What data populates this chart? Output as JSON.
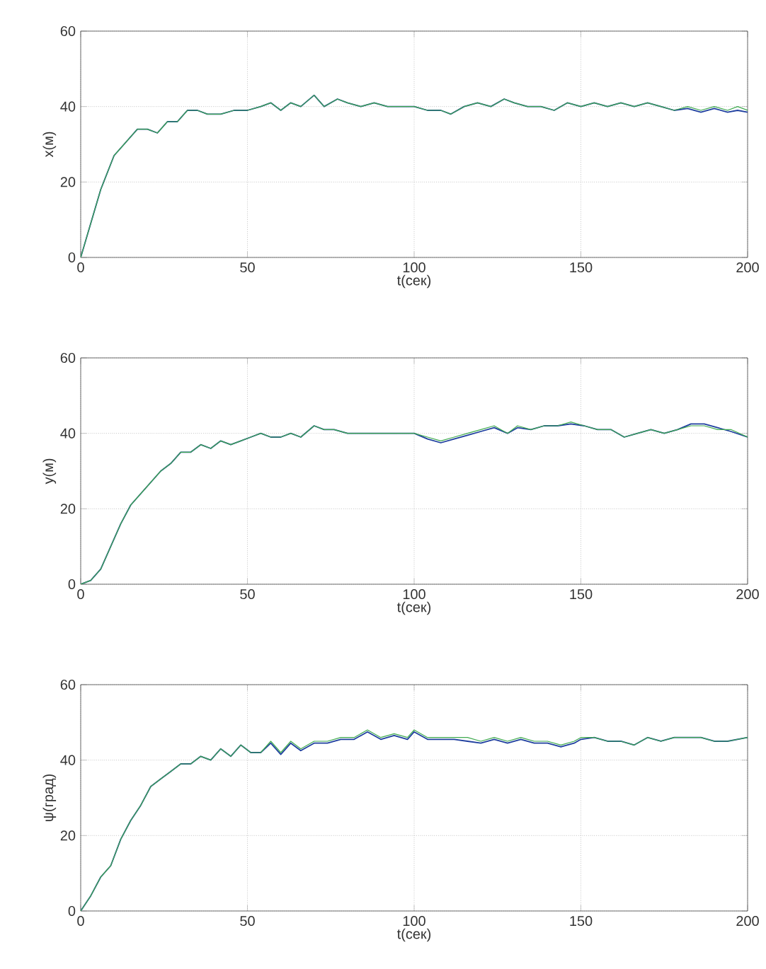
{
  "chart_data": [
    {
      "type": "line",
      "xlabel": "t(сек)",
      "ylabel": "x(м)",
      "xlim": [
        0,
        200
      ],
      "ylim": [
        0,
        60
      ],
      "xticks": [
        0,
        50,
        100,
        150,
        200
      ],
      "yticks": [
        0,
        20,
        40,
        60
      ],
      "grid": true,
      "line_style": "solid",
      "x": [
        0,
        3,
        6,
        10,
        13,
        17,
        20,
        23,
        26,
        29,
        32,
        35,
        38,
        42,
        46,
        50,
        54,
        57,
        60,
        63,
        66,
        70,
        73,
        77,
        80,
        84,
        88,
        92,
        96,
        100,
        104,
        108,
        111,
        115,
        119,
        123,
        127,
        130,
        134,
        138,
        142,
        146,
        150,
        154,
        158,
        162,
        166,
        170,
        174,
        178,
        182,
        186,
        190,
        194,
        197,
        200
      ],
      "series": [
        {
          "color": "#1f3f9f",
          "values": [
            0,
            9,
            18,
            27,
            30,
            34,
            34,
            33,
            36,
            36,
            39,
            39,
            38,
            38,
            39,
            39,
            40,
            41,
            39,
            41,
            40,
            43,
            40,
            42,
            41,
            40,
            41,
            40,
            40,
            40,
            39,
            39,
            38,
            40,
            41,
            40,
            42,
            41,
            40,
            40,
            39,
            41,
            40,
            41,
            40,
            41,
            40,
            41,
            40,
            39,
            39.5,
            38.5,
            39.5,
            38.5,
            39,
            38.5
          ]
        },
        {
          "color": "#3faa4f",
          "values": [
            0,
            9,
            18,
            27,
            30,
            34,
            34,
            33,
            36,
            36,
            39,
            39,
            38,
            38,
            39,
            39,
            40,
            41,
            39,
            41,
            40,
            43,
            40,
            42,
            41,
            40,
            41,
            40,
            40,
            40,
            39,
            39,
            38,
            40,
            41,
            40,
            42,
            41,
            40,
            40,
            39,
            41,
            40,
            41,
            40,
            41,
            40,
            41,
            40,
            39,
            40,
            39,
            40,
            39,
            40,
            39
          ]
        }
      ]
    },
    {
      "type": "line",
      "xlabel": "t(сек)",
      "ylabel": "y(м)",
      "xlim": [
        0,
        200
      ],
      "ylim": [
        0,
        60
      ],
      "xticks": [
        0,
        50,
        100,
        150,
        200
      ],
      "yticks": [
        0,
        20,
        40,
        60
      ],
      "grid": true,
      "line_style": "solid",
      "x": [
        0,
        3,
        6,
        9,
        12,
        15,
        18,
        21,
        24,
        27,
        30,
        33,
        36,
        39,
        42,
        45,
        48,
        51,
        54,
        57,
        60,
        63,
        66,
        70,
        73,
        76,
        80,
        84,
        88,
        92,
        96,
        100,
        104,
        108,
        112,
        116,
        120,
        124,
        128,
        131,
        135,
        139,
        143,
        147,
        151,
        155,
        159,
        163,
        167,
        171,
        175,
        179,
        183,
        187,
        191,
        195,
        200
      ],
      "series": [
        {
          "color": "#1f3f9f",
          "values": [
            0,
            1,
            4,
            10,
            16,
            21,
            24,
            27,
            30,
            32,
            35,
            35,
            37,
            36,
            38,
            37,
            38,
            39,
            40,
            39,
            39,
            40,
            39,
            42,
            41,
            41,
            40,
            40,
            40,
            40,
            40,
            40,
            38.5,
            37.5,
            38.5,
            39.5,
            40.5,
            41.5,
            40,
            41.5,
            41,
            42,
            42,
            42.5,
            42,
            41,
            41,
            39,
            40,
            41,
            40,
            41,
            42.5,
            42.5,
            41.5,
            40.5,
            39
          ]
        },
        {
          "color": "#3faa4f",
          "values": [
            0,
            1,
            4,
            10,
            16,
            21,
            24,
            27,
            30,
            32,
            35,
            35,
            37,
            36,
            38,
            37,
            38,
            39,
            40,
            39,
            39,
            40,
            39,
            42,
            41,
            41,
            40,
            40,
            40,
            40,
            40,
            40,
            39,
            38,
            39,
            40,
            41,
            42,
            40,
            42,
            41,
            42,
            42,
            43,
            42,
            41,
            41,
            39,
            40,
            41,
            40,
            41,
            42,
            42,
            41,
            41,
            39
          ]
        }
      ]
    },
    {
      "type": "line",
      "xlabel": "t(сек)",
      "ylabel": "ψ(град)",
      "xlim": [
        0,
        200
      ],
      "ylim": [
        0,
        60
      ],
      "xticks": [
        0,
        50,
        100,
        150,
        200
      ],
      "yticks": [
        0,
        20,
        40,
        60
      ],
      "grid": true,
      "line_style": "solid",
      "x": [
        0,
        3,
        6,
        9,
        12,
        15,
        18,
        21,
        24,
        27,
        30,
        33,
        36,
        39,
        42,
        45,
        48,
        51,
        54,
        57,
        60,
        63,
        66,
        70,
        74,
        78,
        82,
        86,
        90,
        94,
        98,
        100,
        104,
        108,
        112,
        116,
        120,
        124,
        128,
        132,
        136,
        140,
        144,
        148,
        150,
        154,
        158,
        162,
        166,
        170,
        174,
        178,
        182,
        186,
        190,
        194,
        200
      ],
      "series": [
        {
          "color": "#1f3f9f",
          "values": [
            0,
            4,
            9,
            12,
            19,
            24,
            28,
            33,
            35,
            37,
            39,
            39,
            41,
            40,
            43,
            41,
            44,
            42,
            42,
            44.5,
            41.5,
            44.5,
            42.5,
            44.5,
            44.5,
            45.5,
            45.5,
            47.5,
            45.5,
            46.5,
            45.5,
            47.5,
            45.5,
            45.5,
            45.5,
            45,
            44.5,
            45.5,
            44.5,
            45.5,
            44.5,
            44.5,
            43.5,
            44.5,
            45.5,
            46,
            45,
            45,
            44,
            46,
            45,
            46,
            46,
            46,
            45,
            45,
            46
          ]
        },
        {
          "color": "#3faa4f",
          "values": [
            0,
            4,
            9,
            12,
            19,
            24,
            28,
            33,
            35,
            37,
            39,
            39,
            41,
            40,
            43,
            41,
            44,
            42,
            42,
            45,
            42,
            45,
            43,
            45,
            45,
            46,
            46,
            48,
            46,
            47,
            46,
            48,
            46,
            46,
            46,
            46,
            45,
            46,
            45,
            46,
            45,
            45,
            44,
            45,
            46,
            46,
            45,
            45,
            44,
            46,
            45,
            46,
            46,
            46,
            45,
            45,
            46
          ]
        }
      ]
    }
  ]
}
